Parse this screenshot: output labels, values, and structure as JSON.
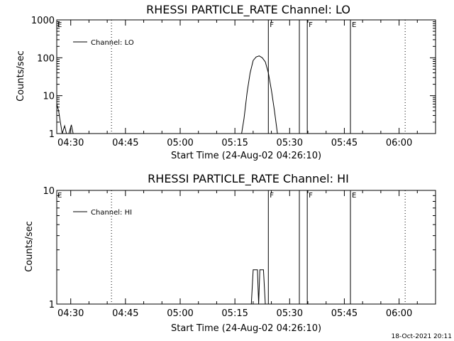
{
  "footer_timestamp": "18-Oct-2021 20:11",
  "chart_data": [
    {
      "type": "line",
      "title": "RHESSI PARTICLE_RATE Channel: LO",
      "xlabel": "Start Time (24-Aug-02 04:26:10)",
      "ylabel": "Counts/sec",
      "yscale": "log",
      "ylim": [
        1,
        1000
      ],
      "y_tick_labels": [
        "1",
        "10",
        "100",
        "1000"
      ],
      "xlim": [
        "04:26:10",
        "06:10:00"
      ],
      "x_tick_labels": [
        "04:30",
        "04:45",
        "05:00",
        "05:15",
        "05:30",
        "05:45",
        "06:00"
      ],
      "legend": {
        "entries": [
          "Channel: LO"
        ],
        "position": "top-left"
      },
      "series": [
        {
          "name": "Channel: LO",
          "points": [
            [
              "04:26:10",
              6
            ],
            [
              "04:26:40",
              4
            ],
            [
              "04:27:10",
              2
            ],
            [
              "04:27:40",
              1
            ],
            [
              "04:28:20",
              1.6
            ],
            [
              "04:28:50",
              1
            ],
            [
              "04:29:30",
              1
            ],
            [
              "04:30:10",
              1.7
            ],
            [
              "04:30:40",
              1
            ],
            [
              "05:16:50",
              1
            ],
            [
              "05:17:30",
              2.5
            ],
            [
              "05:18:20",
              12
            ],
            [
              "05:19:10",
              40
            ],
            [
              "05:20:00",
              85
            ],
            [
              "05:20:50",
              105
            ],
            [
              "05:21:40",
              112
            ],
            [
              "05:22:30",
              100
            ],
            [
              "05:23:20",
              78
            ],
            [
              "05:24:10",
              40
            ],
            [
              "05:25:00",
              14
            ],
            [
              "05:25:50",
              4
            ],
            [
              "05:26:40",
              1
            ]
          ]
        }
      ],
      "vertical_markers": [
        {
          "time": "04:41:10",
          "style": "dotted",
          "label": ""
        },
        {
          "time": "05:24:10",
          "style": "solid",
          "label": "F"
        },
        {
          "time": "05:32:40",
          "style": "solid",
          "label": ""
        },
        {
          "time": "05:34:50",
          "style": "solid",
          "label": "F"
        },
        {
          "time": "05:46:40",
          "style": "solid",
          "label": "E"
        },
        {
          "time": "06:01:40",
          "style": "dotted",
          "label": ""
        }
      ],
      "left_edge_label": "E"
    },
    {
      "type": "line",
      "title": "RHESSI PARTICLE_RATE Channel: HI",
      "xlabel": "Start Time (24-Aug-02 04:26:10)",
      "ylabel": "Counts/sec",
      "yscale": "log",
      "ylim": [
        1,
        10
      ],
      "y_tick_labels": [
        "1",
        "10"
      ],
      "xlim": [
        "04:26:10",
        "06:10:00"
      ],
      "x_tick_labels": [
        "04:30",
        "04:45",
        "05:00",
        "05:15",
        "05:30",
        "05:45",
        "06:00"
      ],
      "legend": {
        "entries": [
          "Channel: HI"
        ],
        "position": "top-left"
      },
      "series": [
        {
          "name": "Channel: HI",
          "points": [
            [
              "05:19:30",
              1
            ],
            [
              "05:20:00",
              2
            ],
            [
              "05:21:10",
              2
            ],
            [
              "05:21:30",
              1
            ],
            [
              "05:21:50",
              2
            ],
            [
              "05:22:50",
              2
            ],
            [
              "05:23:20",
              1
            ]
          ]
        }
      ],
      "vertical_markers": [
        {
          "time": "04:41:10",
          "style": "dotted",
          "label": ""
        },
        {
          "time": "05:24:10",
          "style": "solid",
          "label": "F"
        },
        {
          "time": "05:32:40",
          "style": "solid",
          "label": ""
        },
        {
          "time": "05:34:50",
          "style": "solid",
          "label": "F"
        },
        {
          "time": "05:46:40",
          "style": "solid",
          "label": "E"
        },
        {
          "time": "06:01:40",
          "style": "dotted",
          "label": ""
        }
      ],
      "left_edge_label": "E"
    }
  ]
}
